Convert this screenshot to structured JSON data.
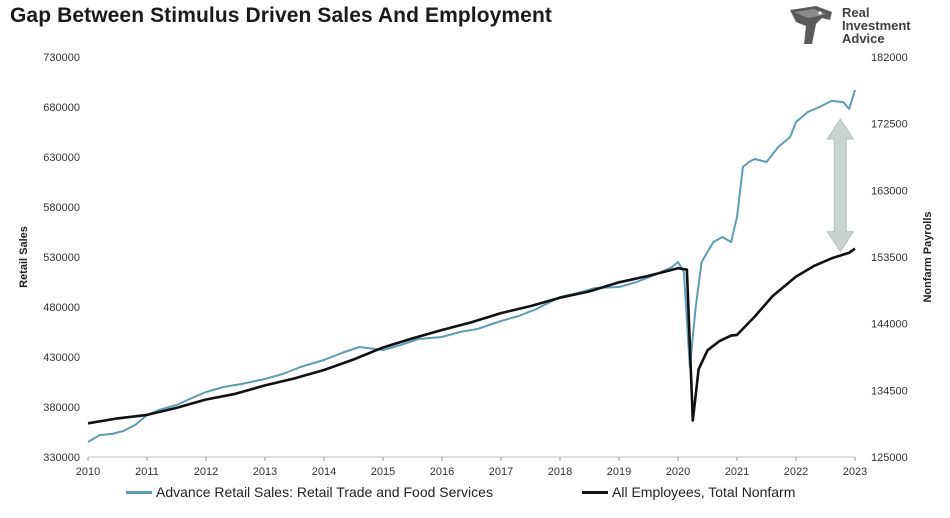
{
  "title": "Gap Between Stimulus Driven Sales And Employment",
  "logo": {
    "line1": "Real",
    "line2": "Investment",
    "line3": "Advice",
    "icon": "eagle-head-icon"
  },
  "colors": {
    "retail": "#5b9db8",
    "payrolls": "#111111",
    "arrow": "#c9d4ce"
  },
  "chart_data": {
    "type": "line",
    "title": "Gap Between Stimulus Driven Sales And Employment",
    "xlabel": "",
    "ylabel_left": "Retail Sales",
    "ylabel_right": "Nonfarm Payrolls",
    "x_ticks": [
      "2010",
      "2011",
      "2012",
      "2013",
      "2014",
      "2015",
      "2016",
      "2017",
      "2018",
      "2019",
      "2020",
      "2021",
      "2022",
      "2023"
    ],
    "xlim": [
      2010,
      2023
    ],
    "ylim_left": [
      330000,
      730000
    ],
    "ylim_right": [
      125000,
      182000
    ],
    "y_ticks_left": [
      330000,
      380000,
      430000,
      480000,
      530000,
      580000,
      630000,
      680000,
      730000
    ],
    "y_ticks_right": [
      125000,
      134500,
      144000,
      153500,
      163000,
      172500,
      182000
    ],
    "y_tick_labels_left": [
      "330000",
      "380000",
      "430000",
      "480000",
      "530000",
      "580000",
      "630000",
      "680000",
      "730000"
    ],
    "y_tick_labels_right": [
      "125000",
      "134500",
      "144000",
      "153500",
      "163000",
      "172500",
      "182000"
    ],
    "annotation": "double-headed arrow highlighting gap",
    "series": [
      {
        "name": "Advance Retail Sales: Retail Trade and Food Services",
        "axis": "left",
        "x": [
          2010.0,
          2010.2,
          2010.4,
          2010.6,
          2010.8,
          2011.0,
          2011.2,
          2011.5,
          2011.8,
          2012.0,
          2012.3,
          2012.6,
          2013.0,
          2013.3,
          2013.6,
          2014.0,
          2014.3,
          2014.6,
          2015.0,
          2015.3,
          2015.6,
          2016.0,
          2016.3,
          2016.6,
          2017.0,
          2017.3,
          2017.6,
          2018.0,
          2018.3,
          2018.6,
          2019.0,
          2019.3,
          2019.6,
          2019.9,
          2020.0,
          2020.1,
          2020.2,
          2020.3,
          2020.4,
          2020.5,
          2020.6,
          2020.75,
          2020.9,
          2021.0,
          2021.1,
          2021.2,
          2021.3,
          2021.5,
          2021.7,
          2021.9,
          2022.0,
          2022.2,
          2022.4,
          2022.6,
          2022.8,
          2022.9,
          2023.0
        ],
        "values": [
          345000,
          352000,
          353000,
          356000,
          362000,
          372000,
          377000,
          382000,
          390000,
          395000,
          400000,
          403000,
          408000,
          413000,
          420000,
          427000,
          434000,
          440000,
          437000,
          442000,
          448000,
          450000,
          455000,
          458000,
          466000,
          471000,
          478000,
          490000,
          494000,
          499000,
          500000,
          505000,
          512000,
          520000,
          525000,
          515000,
          420000,
          480000,
          525000,
          535000,
          545000,
          550000,
          545000,
          570000,
          620000,
          625000,
          628000,
          625000,
          640000,
          650000,
          665000,
          675000,
          680000,
          686000,
          685000,
          678000,
          697000
        ]
      },
      {
        "name": "All Employees, Total Nonfarm",
        "axis": "right",
        "x": [
          2010.0,
          2010.5,
          2011.0,
          2011.5,
          2012.0,
          2012.5,
          2013.0,
          2013.5,
          2014.0,
          2014.5,
          2015.0,
          2015.5,
          2016.0,
          2016.5,
          2017.0,
          2017.5,
          2018.0,
          2018.5,
          2019.0,
          2019.5,
          2020.0,
          2020.15,
          2020.25,
          2020.35,
          2020.5,
          2020.7,
          2020.9,
          2021.0,
          2021.3,
          2021.6,
          2022.0,
          2022.3,
          2022.6,
          2022.9,
          2023.0
        ],
        "values": [
          129800,
          130500,
          131000,
          132000,
          133200,
          134000,
          135200,
          136200,
          137400,
          138900,
          140600,
          141900,
          143100,
          144200,
          145500,
          146500,
          147700,
          148600,
          149900,
          150800,
          151900,
          151700,
          130200,
          137500,
          140200,
          141500,
          142300,
          142400,
          145000,
          147900,
          150700,
          152200,
          153300,
          154100,
          154700
        ]
      }
    ]
  }
}
